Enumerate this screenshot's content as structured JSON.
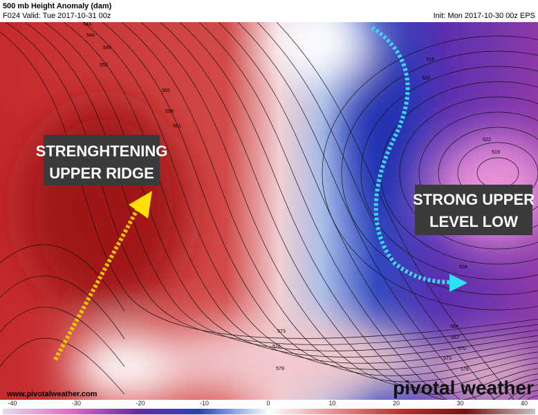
{
  "header": {
    "title": "500 mb Height Anomaly (dam)",
    "valid": "F024 Valid: Tue 2017-10-31 00z",
    "init": "Init: Mon 2017-10-30 00z EPS"
  },
  "annotations": [
    {
      "lines": [
        "STRENGHTENING",
        "UPPER RIDGE"
      ]
    },
    {
      "lines": [
        "STRONG UPPER",
        "LEVEL LOW"
      ]
    }
  ],
  "contour_labels": [
    "543",
    "546",
    "549",
    "552",
    "555",
    "558",
    "561",
    "519",
    "522",
    "522",
    "519",
    "534",
    "564",
    "567",
    "570",
    "573",
    "576",
    "573",
    "576",
    "579"
  ],
  "watermark": "www.pivotalweather.com",
  "logo": "pivotal weather",
  "colorbar": {
    "ticks": [
      -40,
      -30,
      -20,
      -10,
      0,
      10,
      20,
      30,
      40
    ]
  }
}
